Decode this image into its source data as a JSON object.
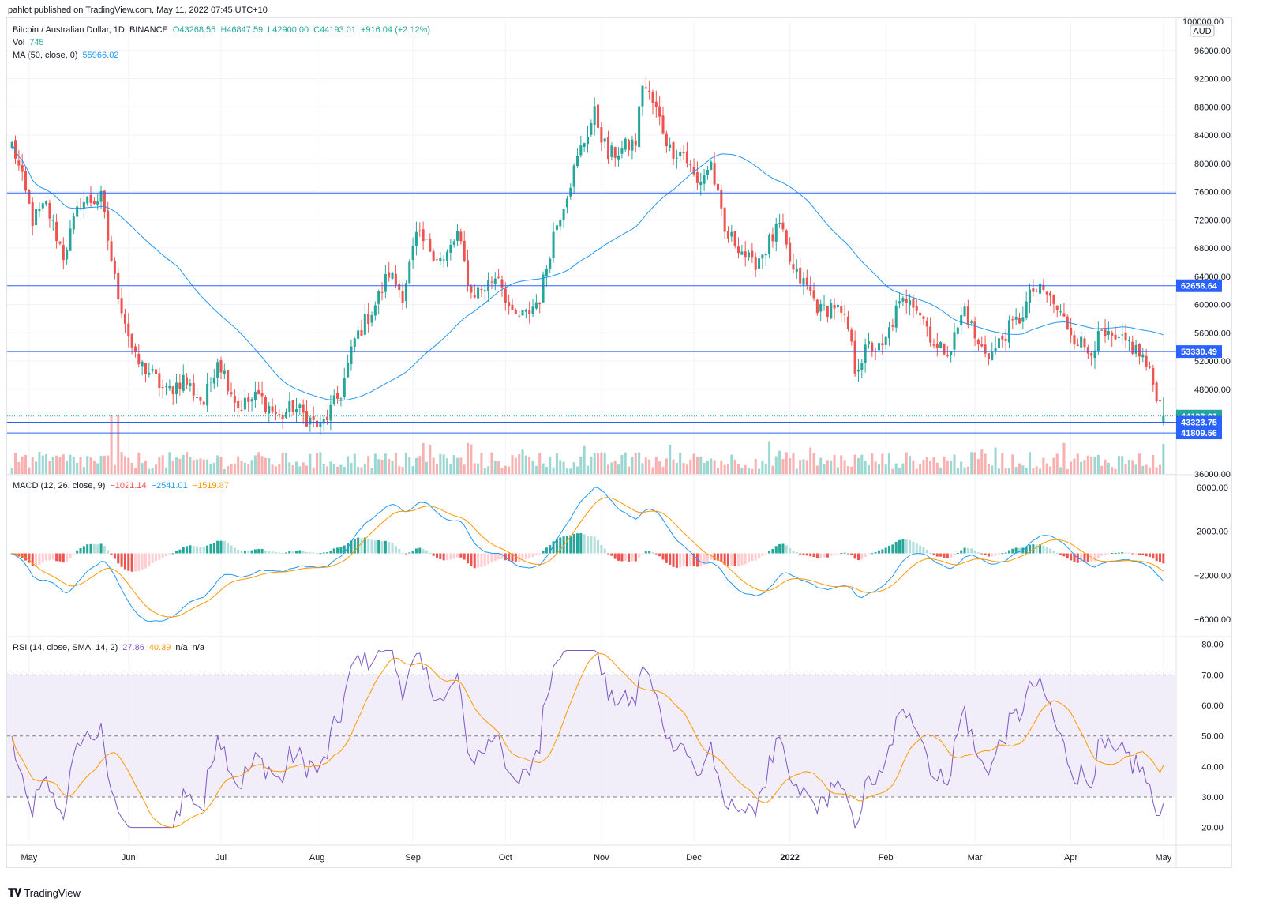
{
  "header": {
    "published_note": "pahlot published on TradingView.com, May 11, 2022 07:45 UTC+10"
  },
  "legend": {
    "symbol": "Bitcoin / Australian Dollar, 1D, BINANCE",
    "open": "O43268.55",
    "high": "H46847.59",
    "low": "L42900.00",
    "close": "C44193.01",
    "change": "+916.04 (+2.12%)",
    "vol_label": "Vol",
    "vol_value": "745",
    "ma_label": "MA (50, close, 0)",
    "ma_value": "55966.02",
    "macd_label": "MACD (12, 26, close, 9)",
    "macd_hist": "−1021.14",
    "macd_line": "−2541.01",
    "macd_signal": "−1519.87",
    "rsi_label": "RSI (14, close, SMA, 14, 2)",
    "rsi_value": "27.86",
    "rsi_ma": "40.39",
    "rsi_na1": "n/a",
    "rsi_na2": "n/a"
  },
  "colors": {
    "up": "#26a69a",
    "down": "#ef5350",
    "ma": "#2196f3",
    "line": "#2962ff",
    "macd": "#2196f3",
    "signal": "#ff9800",
    "rsi": "#7e57c2",
    "rsi_band": "#ede7f6"
  },
  "footer": {
    "brand": "TradingView"
  },
  "chart_data": [
    {
      "type": "candlestick",
      "pane": "price",
      "currency": "AUD",
      "ylim": [
        36000,
        100000
      ],
      "y_ticks": [
        "96000.00",
        "92000.00",
        "88000.00",
        "84000.00",
        "80000.00",
        "76000.00",
        "72000.00",
        "68000.00",
        "64000.00",
        "60000.00",
        "56000.00",
        "52000.00",
        "48000.00",
        "36000.00"
      ],
      "top_tick": "100000.00",
      "x_labels": [
        "May",
        "Jun",
        "Jul",
        "Aug",
        "Sep",
        "Oct",
        "Nov",
        "Dec",
        "2022",
        "Feb",
        "Mar",
        "Apr",
        "May"
      ],
      "horizontal_levels": [
        75800,
        62658.64,
        53330.49,
        43323.75,
        41809.56
      ],
      "price_tags": [
        {
          "value": 62658.64,
          "label": "62658.64",
          "color": "#2962ff"
        },
        {
          "value": 53330.49,
          "label": "53330.49",
          "color": "#2962ff"
        },
        {
          "value": 44193.01,
          "label": "44193.01",
          "color": "#26a69a"
        },
        {
          "value": 43323.75,
          "label": "43323.75",
          "color": "#2962ff"
        },
        {
          "value": 41809.56,
          "label": "41809.56",
          "color": "#2962ff"
        }
      ],
      "close_anchors": [
        [
          0,
          83000
        ],
        [
          6,
          72000
        ],
        [
          10,
          74000
        ],
        [
          15,
          67000
        ],
        [
          20,
          74500
        ],
        [
          26,
          75000
        ],
        [
          30,
          63500
        ],
        [
          36,
          52000
        ],
        [
          40,
          50500
        ],
        [
          45,
          47500
        ],
        [
          50,
          49500
        ],
        [
          56,
          46000
        ],
        [
          60,
          52500
        ],
        [
          66,
          45500
        ],
        [
          72,
          47000
        ],
        [
          78,
          44000
        ],
        [
          82,
          45500
        ],
        [
          86,
          44000
        ],
        [
          90,
          42500
        ],
        [
          96,
          47500
        ],
        [
          100,
          55000
        ],
        [
          106,
          60000
        ],
        [
          110,
          64500
        ],
        [
          114,
          61500
        ],
        [
          118,
          69500
        ],
        [
          122,
          68000
        ],
        [
          126,
          66000
        ],
        [
          130,
          70000
        ],
        [
          134,
          61500
        ],
        [
          138,
          62500
        ],
        [
          142,
          64500
        ],
        [
          146,
          58000
        ],
        [
          150,
          58500
        ],
        [
          154,
          61000
        ],
        [
          158,
          70000
        ],
        [
          162,
          76000
        ],
        [
          166,
          82000
        ],
        [
          170,
          87000
        ],
        [
          174,
          81000
        ],
        [
          178,
          82000
        ],
        [
          182,
          83000
        ],
        [
          184,
          91500
        ],
        [
          188,
          87500
        ],
        [
          192,
          82000
        ],
        [
          196,
          81500
        ],
        [
          200,
          77000
        ],
        [
          204,
          80000
        ],
        [
          208,
          70000
        ],
        [
          212,
          68500
        ],
        [
          216,
          65500
        ],
        [
          220,
          68000
        ],
        [
          224,
          71000
        ],
        [
          228,
          64500
        ],
        [
          232,
          62500
        ],
        [
          236,
          59000
        ],
        [
          240,
          60000
        ],
        [
          244,
          56500
        ],
        [
          246,
          51000
        ],
        [
          250,
          54000
        ],
        [
          254,
          53500
        ],
        [
          258,
          59000
        ],
        [
          262,
          61500
        ],
        [
          266,
          58000
        ],
        [
          270,
          53500
        ],
        [
          274,
          54000
        ],
        [
          278,
          59500
        ],
        [
          282,
          54000
        ],
        [
          286,
          53000
        ],
        [
          290,
          56000
        ],
        [
          294,
          58000
        ],
        [
          298,
          62000
        ],
        [
          302,
          61500
        ],
        [
          306,
          58500
        ],
        [
          310,
          55500
        ],
        [
          314,
          53500
        ],
        [
          318,
          55500
        ],
        [
          322,
          54500
        ],
        [
          326,
          54500
        ],
        [
          330,
          52500
        ],
        [
          334,
          47500
        ],
        [
          336,
          44193
        ]
      ],
      "ma": {
        "period": 50,
        "last": 55966.02
      },
      "volume": {
        "last": 745
      }
    },
    {
      "type": "macd",
      "pane": "macd",
      "ylim": [
        -7500,
        7000
      ],
      "y_ticks": [
        "6000.00",
        "2000.00",
        "−2000.00",
        "−6000.00"
      ],
      "last": {
        "histogram": -1021.14,
        "macd": -2541.01,
        "signal": -1519.87
      }
    },
    {
      "type": "rsi",
      "pane": "rsi",
      "ylim": [
        15,
        82
      ],
      "y_ticks": [
        "80.00",
        "70.00",
        "60.00",
        "50.00",
        "40.00",
        "30.00",
        "20.00"
      ],
      "bands": {
        "upper": 70,
        "middle": 50,
        "lower": 30
      },
      "last": {
        "rsi": 27.86,
        "rsi_ma": 40.39
      }
    }
  ]
}
